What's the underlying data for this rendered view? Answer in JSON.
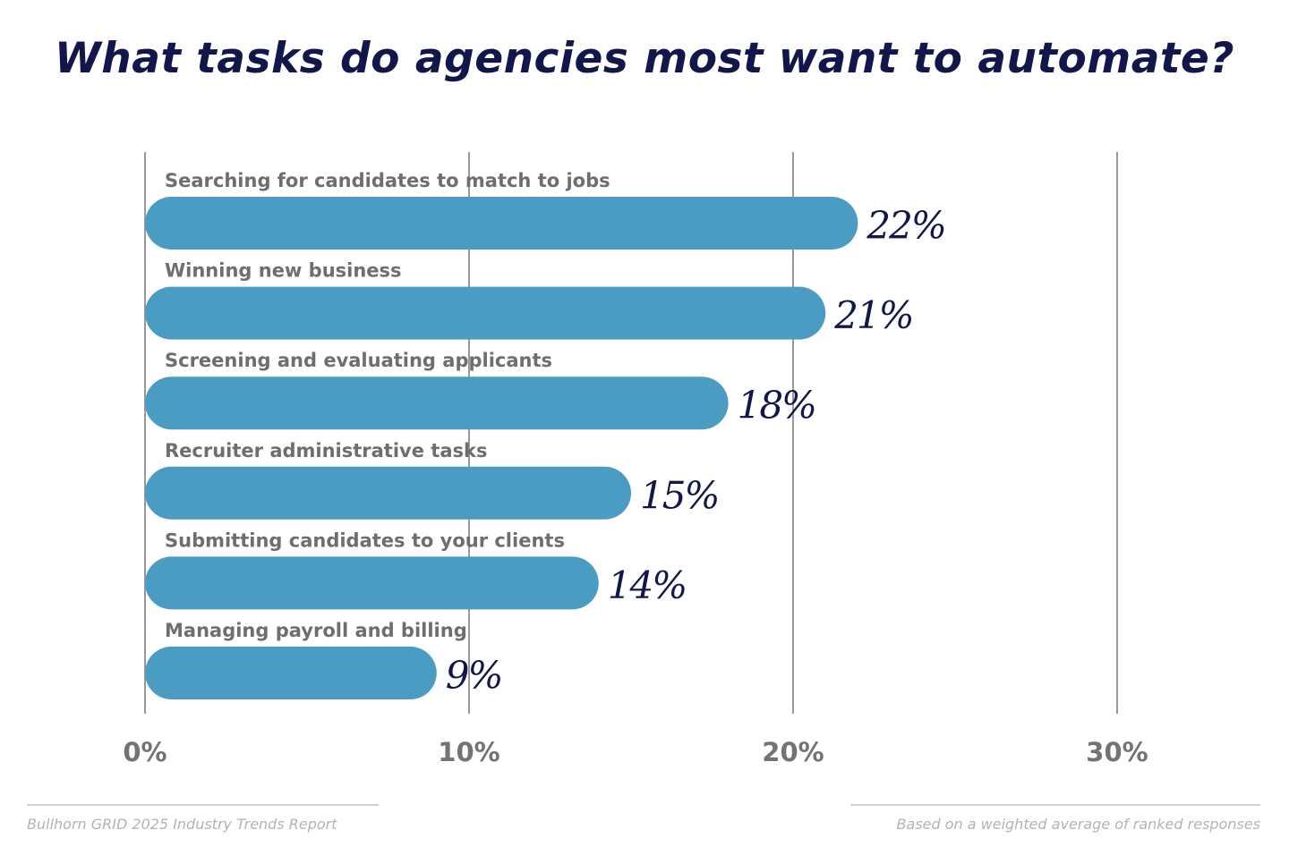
{
  "title": "What tasks do agencies most want to automate?",
  "colors": {
    "bar": "#4a9cc3",
    "label": "#6e6e6e",
    "value": "#12164a",
    "grid": "#999999",
    "tick": "#737373"
  },
  "chart_data": {
    "type": "bar",
    "orientation": "horizontal",
    "title": "What tasks do agencies most want to automate?",
    "xlabel": "",
    "ylabel": "",
    "xlim": [
      0,
      30
    ],
    "ticks": [
      0,
      10,
      20,
      30
    ],
    "tick_labels": [
      "0%",
      "10%",
      "20%",
      "30%"
    ],
    "grid": true,
    "categories": [
      "Searching for candidates to match to jobs",
      "Winning new business",
      "Screening and evaluating applicants",
      "Recruiter administrative tasks",
      "Submitting candidates to your clients",
      "Managing payroll and billing"
    ],
    "values": [
      22,
      21,
      18,
      15,
      14,
      9
    ],
    "value_labels": [
      "22%",
      "21%",
      "18%",
      "15%",
      "14%",
      "9%"
    ]
  },
  "footer": {
    "source": "Bullhorn GRID 2025 Industry Trends Report",
    "note": "Based on a weighted average of ranked responses"
  }
}
